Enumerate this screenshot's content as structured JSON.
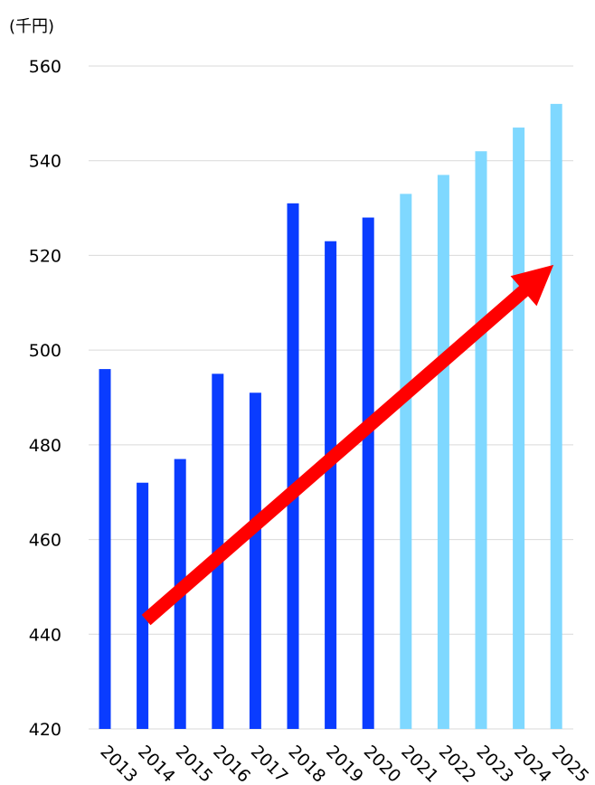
{
  "chart_data": {
    "type": "bar",
    "unit_label": "(千円)",
    "categories": [
      "2013",
      "2014",
      "2015",
      "2016",
      "2017",
      "2018",
      "2019",
      "2020",
      "2021",
      "2022",
      "2023",
      "2024",
      "2025"
    ],
    "values": [
      496,
      472,
      477,
      495,
      491,
      531,
      523,
      528,
      533,
      537,
      542,
      547,
      552
    ],
    "bar_colors": [
      "#0a3cff",
      "#0a3cff",
      "#0a3cff",
      "#0a3cff",
      "#0a3cff",
      "#0a3cff",
      "#0a3cff",
      "#0a3cff",
      "#7fd8ff",
      "#7fd8ff",
      "#7fd8ff",
      "#7fd8ff",
      "#7fd8ff"
    ],
    "ylim": [
      420,
      560
    ],
    "yticks": [
      420,
      440,
      460,
      480,
      500,
      520,
      540,
      560
    ],
    "grid": true,
    "arrow": {
      "color": "#ff0000",
      "from": {
        "x": "2014",
        "y": 443
      },
      "to": {
        "x": "2025",
        "y": 518
      }
    }
  }
}
